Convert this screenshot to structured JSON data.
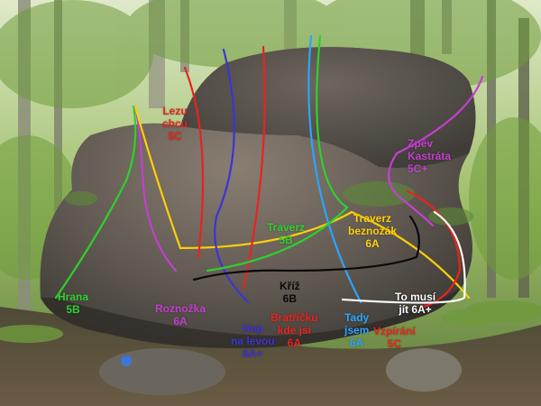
{
  "photo": {
    "subject": "boulder with climbing routes",
    "colors": {
      "red": "#e8231f",
      "blue": "#3b34d6",
      "green": "#2ed12e",
      "yellow": "#ffcf0a",
      "purple": "#c33fd0",
      "cyan": "#2aa5ff",
      "black": "#0a0a0a",
      "white": "#ffffff"
    }
  },
  "routes": [
    {
      "key": "lezu_chcu",
      "lines": [
        "Lezu",
        "chcu",
        "5C"
      ],
      "color": "red"
    },
    {
      "key": "zpev_kastrata",
      "lines": [
        "Zpěv",
        "Kastráta",
        "5C+"
      ],
      "color": "purple"
    },
    {
      "key": "traverz_5b",
      "lines": [
        "Traverz",
        "5B"
      ],
      "color": "green"
    },
    {
      "key": "traverz_beznozak",
      "lines": [
        "Traverz",
        "beznožák",
        "6A"
      ],
      "color": "yellow"
    },
    {
      "key": "kriz",
      "lines": [
        "Kříž",
        "6B"
      ],
      "color": "black"
    },
    {
      "key": "hrana",
      "lines": [
        "Hrana",
        "5B"
      ],
      "color": "green"
    },
    {
      "key": "roznozka",
      "lines": [
        "Roznožka",
        "6A"
      ],
      "color": "purple"
    },
    {
      "key": "hop_na_levou",
      "lines": [
        "Hop",
        "na levou",
        "6A+"
      ],
      "color": "blue"
    },
    {
      "key": "bratricku",
      "lines": [
        "Bratříčku",
        "kde jsi",
        "6A"
      ],
      "color": "red"
    },
    {
      "key": "tady_jsem",
      "lines": [
        "Tady",
        "jsem",
        "6A"
      ],
      "color": "cyan"
    },
    {
      "key": "vzpirani",
      "lines": [
        "Vzpírání",
        "5C"
      ],
      "color": "red"
    },
    {
      "key": "to_musi",
      "lines": [
        "To musí",
        "jít 6A+"
      ],
      "color": "white"
    }
  ]
}
